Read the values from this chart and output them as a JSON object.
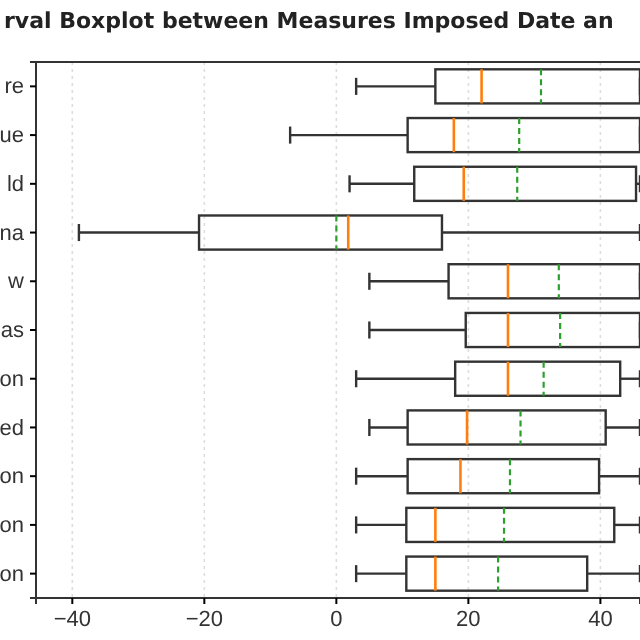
{
  "chart_data": {
    "type": "box",
    "title": "rval Boxplot between Measures Imposed Date an",
    "orientation": "horizontal",
    "categories": [
      "re",
      "ue",
      "ld",
      "na",
      "w",
      "as",
      "on",
      "ed",
      "on",
      "on",
      "on"
    ],
    "boxes": [
      {
        "low": 3,
        "q1": 15,
        "median": 22,
        "q3": 46,
        "high": 46,
        "mean": 31
      },
      {
        "low": -7,
        "q1": 10.8,
        "median": 17.8,
        "q3": 46,
        "high": 46,
        "mean": 27.7
      },
      {
        "low": 2,
        "q1": 11.8,
        "median": 19.3,
        "q3": 45.4,
        "high": 46,
        "mean": 27.4
      },
      {
        "low": -39,
        "q1": -20.8,
        "median": 1.8,
        "q3": 16,
        "high": 46,
        "mean": 0
      },
      {
        "low": 5,
        "q1": 17,
        "median": 26,
        "q3": 46,
        "high": 46,
        "mean": 33.7
      },
      {
        "low": 5,
        "q1": 19.6,
        "median": 26,
        "q3": 46,
        "high": 46,
        "mean": 33.9
      },
      {
        "low": 3,
        "q1": 18,
        "median": 26,
        "q3": 43,
        "high": 46,
        "mean": 31.4
      },
      {
        "low": 5,
        "q1": 10.8,
        "median": 19.8,
        "q3": 40.8,
        "high": 46,
        "mean": 27.9
      },
      {
        "low": 3,
        "q1": 10.8,
        "median": 18.8,
        "q3": 39.8,
        "high": 46,
        "mean": 26.3
      },
      {
        "low": 3,
        "q1": 10.6,
        "median": 15,
        "q3": 42.1,
        "high": 46,
        "mean": 25.4
      },
      {
        "low": 3,
        "q1": 10.6,
        "median": 15,
        "q3": 38,
        "high": 46,
        "mean": 24.5
      }
    ],
    "xlim": [
      -45.5,
      46
    ],
    "xticks": [
      -40,
      -20,
      0,
      20,
      40
    ],
    "grid": "x"
  }
}
